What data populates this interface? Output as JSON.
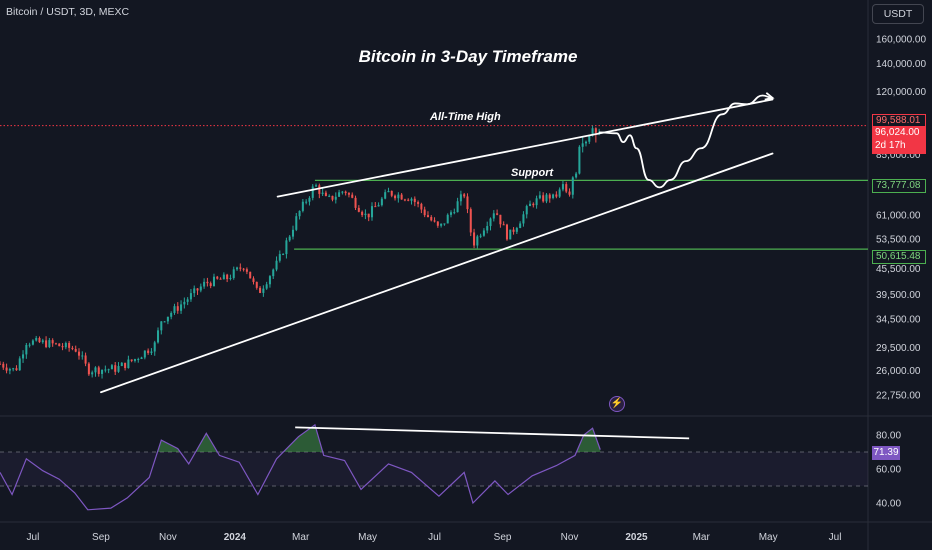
{
  "header": {
    "symbol_title": "Bitcoin / USDT, 3D, MEXC",
    "currency_button": "USDT"
  },
  "annotations": {
    "title": "Bitcoin in 3-Day Timeframe",
    "ath_label": "All-Time High",
    "support_label": "Support"
  },
  "price_tags": {
    "ath": "99,588.01",
    "last_price": "96,024.00",
    "countdown": "2d 17h",
    "level_1": "73,777.08",
    "level_2": "50,615.48",
    "rsi_value": "71.39"
  },
  "colors": {
    "background": "#131722",
    "up": "#26a69a",
    "down": "#ef5350",
    "level_line": "#4caf50",
    "rsi_line": "#7e57c2",
    "trend_line": "#ffffff",
    "last_price": "#f23645"
  },
  "icons": {
    "flash": "lightning-icon"
  },
  "chart_data": [
    {
      "type": "candlestick",
      "title": "Bitcoin in 3-Day Timeframe",
      "y_scale": "log",
      "ylim": [
        20500,
        172000
      ],
      "xlim": [
        "2023-06-01",
        "2025-07-31"
      ],
      "y_ticks": [
        {
          "value": 160000,
          "label": "160,000.00"
        },
        {
          "value": 140000,
          "label": "140,000.00"
        },
        {
          "value": 120000,
          "label": "120,000.00"
        },
        {
          "value": 85000,
          "label": "85,000.00"
        },
        {
          "value": 61000,
          "label": "61,000.00"
        },
        {
          "value": 53500,
          "label": "53,500.00"
        },
        {
          "value": 45500,
          "label": "45,500.00"
        },
        {
          "value": 39500,
          "label": "39,500.00"
        },
        {
          "value": 34500,
          "label": "34,500.00"
        },
        {
          "value": 29500,
          "label": "29,500.00"
        },
        {
          "value": 26000,
          "label": "26,000.00"
        },
        {
          "value": 22750,
          "label": "22,750.00"
        }
      ],
      "x_ticks": [
        {
          "date": "2023-07-01",
          "label": "Jul",
          "bold": false
        },
        {
          "date": "2023-09-01",
          "label": "Sep",
          "bold": false
        },
        {
          "date": "2023-11-01",
          "label": "Nov",
          "bold": false
        },
        {
          "date": "2024-01-01",
          "label": "2024",
          "bold": true
        },
        {
          "date": "2024-03-01",
          "label": "Mar",
          "bold": false
        },
        {
          "date": "2024-05-01",
          "label": "May",
          "bold": false
        },
        {
          "date": "2024-07-01",
          "label": "Jul",
          "bold": false
        },
        {
          "date": "2024-09-01",
          "label": "Sep",
          "bold": false
        },
        {
          "date": "2024-11-01",
          "label": "Nov",
          "bold": false
        },
        {
          "date": "2025-01-01",
          "label": "2025",
          "bold": true
        },
        {
          "date": "2025-03-01",
          "label": "Mar",
          "bold": false
        },
        {
          "date": "2025-05-01",
          "label": "May",
          "bold": false
        },
        {
          "date": "2025-07-01",
          "label": "Jul",
          "bold": false
        }
      ],
      "close_series": [
        [
          "2023-06-01",
          27000
        ],
        [
          "2023-06-15",
          26000
        ],
        [
          "2023-06-25",
          30500
        ],
        [
          "2023-07-15",
          30200
        ],
        [
          "2023-08-10",
          29200
        ],
        [
          "2023-08-20",
          26100
        ],
        [
          "2023-09-15",
          26300
        ],
        [
          "2023-10-01",
          27600
        ],
        [
          "2023-10-20",
          30000
        ],
        [
          "2023-10-26",
          34300
        ],
        [
          "2023-11-10",
          36800
        ],
        [
          "2023-12-05",
          42000
        ],
        [
          "2023-12-25",
          43200
        ],
        [
          "2024-01-10",
          46500
        ],
        [
          "2024-01-22",
          39600
        ],
        [
          "2024-02-10",
          47500
        ],
        [
          "2024-02-28",
          61500
        ],
        [
          "2024-03-14",
          72000
        ],
        [
          "2024-03-25",
          66000
        ],
        [
          "2024-04-10",
          70000
        ],
        [
          "2024-04-30",
          60500
        ],
        [
          "2024-05-20",
          69000
        ],
        [
          "2024-06-10",
          67000
        ],
        [
          "2024-07-05",
          56500
        ],
        [
          "2024-07-28",
          68500
        ],
        [
          "2024-08-05",
          52000
        ],
        [
          "2024-08-25",
          63000
        ],
        [
          "2024-09-06",
          54000
        ],
        [
          "2024-09-28",
          65500
        ],
        [
          "2024-10-20",
          68500
        ],
        [
          "2024-11-06",
          75000
        ],
        [
          "2024-11-14",
          90000
        ],
        [
          "2024-11-22",
          98500
        ],
        [
          "2024-11-29",
          96024
        ]
      ],
      "ohlc": [
        [
          "2024-10-17",
          67000,
          68600,
          66500,
          68300
        ],
        [
          "2024-10-20",
          68300,
          69500,
          66900,
          67500
        ],
        [
          "2024-10-23",
          67500,
          71000,
          67000,
          70200
        ],
        [
          "2024-10-26",
          70200,
          73600,
          69500,
          72300
        ],
        [
          "2024-10-29",
          72300,
          73200,
          68800,
          69400
        ],
        [
          "2024-11-01",
          69400,
          70600,
          67500,
          68200
        ],
        [
          "2024-11-04",
          68200,
          75500,
          66800,
          75000
        ],
        [
          "2024-11-07",
          75000,
          77300,
          74500,
          76600
        ],
        [
          "2024-11-10",
          76600,
          89500,
          76200,
          88700
        ],
        [
          "2024-11-13",
          88700,
          93400,
          86000,
          90400
        ],
        [
          "2024-11-16",
          90400,
          91800,
          88900,
          91200
        ],
        [
          "2024-11-19",
          91200,
          94900,
          90100,
          94300
        ],
        [
          "2024-11-22",
          94300,
          99588,
          93800,
          98200
        ],
        [
          "2024-11-25",
          98200,
          98700,
          90800,
          95800
        ],
        [
          "2024-11-28",
          95800,
          97900,
          94500,
          96024
        ]
      ],
      "levels": [
        {
          "value": 99588.01,
          "style": "dotted",
          "color": "#f23645"
        },
        {
          "value": 73777.08,
          "color": "#4caf50",
          "from": "2024-03-14"
        },
        {
          "value": 50615.48,
          "color": "#4caf50",
          "from": "2024-02-24"
        }
      ],
      "trendlines": [
        {
          "name": "upper-resistance",
          "from": [
            "2024-02-09",
            67500
          ],
          "to": [
            "2025-05-05",
            115000
          ]
        },
        {
          "name": "lower-support",
          "from": [
            "2023-09-01",
            23100
          ],
          "to": [
            "2025-05-05",
            85500
          ]
        }
      ],
      "projection": [
        [
          "2024-11-28",
          96000
        ],
        [
          "2024-12-14",
          95500
        ],
        [
          "2024-12-20",
          91000
        ],
        [
          "2024-12-26",
          94500
        ],
        [
          "2025-01-01",
          88000
        ],
        [
          "2025-01-12",
          74000
        ],
        [
          "2025-01-22",
          71000
        ],
        [
          "2025-02-01",
          74000
        ],
        [
          "2025-02-15",
          82000
        ],
        [
          "2025-03-01",
          88000
        ],
        [
          "2025-03-20",
          106000
        ],
        [
          "2025-04-01",
          112500
        ],
        [
          "2025-04-12",
          112000
        ],
        [
          "2025-04-26",
          117500
        ],
        [
          "2025-05-05",
          116000
        ]
      ]
    },
    {
      "type": "line",
      "name": "RSI",
      "ylim": [
        30,
        90
      ],
      "y_ticks": [
        {
          "value": 80,
          "label": "80.00"
        },
        {
          "value": 60,
          "label": "60.00"
        },
        {
          "value": 40,
          "label": "40.00"
        }
      ],
      "bands": {
        "upper": 70,
        "lower": 50
      },
      "values": [
        [
          "2023-06-01",
          58
        ],
        [
          "2023-06-12",
          45
        ],
        [
          "2023-06-25",
          66
        ],
        [
          "2023-07-10",
          59
        ],
        [
          "2023-07-25",
          54
        ],
        [
          "2023-08-08",
          46
        ],
        [
          "2023-08-20",
          36
        ],
        [
          "2023-09-10",
          37
        ],
        [
          "2023-09-25",
          43
        ],
        [
          "2023-10-15",
          55
        ],
        [
          "2023-10-26",
          77
        ],
        [
          "2023-11-10",
          72
        ],
        [
          "2023-11-20",
          63
        ],
        [
          "2023-12-06",
          81
        ],
        [
          "2023-12-18",
          68
        ],
        [
          "2024-01-05",
          64
        ],
        [
          "2024-01-22",
          45
        ],
        [
          "2024-02-08",
          66
        ],
        [
          "2024-02-28",
          79
        ],
        [
          "2024-03-14",
          86
        ],
        [
          "2024-03-22",
          68
        ],
        [
          "2024-04-10",
          65
        ],
        [
          "2024-04-25",
          48
        ],
        [
          "2024-05-20",
          63
        ],
        [
          "2024-06-10",
          58
        ],
        [
          "2024-07-05",
          44
        ],
        [
          "2024-07-28",
          58
        ],
        [
          "2024-08-05",
          40
        ],
        [
          "2024-08-25",
          53
        ],
        [
          "2024-09-06",
          45
        ],
        [
          "2024-09-28",
          56
        ],
        [
          "2024-10-20",
          62
        ],
        [
          "2024-11-06",
          68
        ],
        [
          "2024-11-14",
          80
        ],
        [
          "2024-11-22",
          84
        ],
        [
          "2024-11-29",
          71.39
        ]
      ],
      "trendlines": [
        {
          "name": "rsi-divergence-line",
          "from": [
            "2024-02-25",
            84.5
          ],
          "to": [
            "2025-02-18",
            78
          ]
        }
      ]
    }
  ]
}
